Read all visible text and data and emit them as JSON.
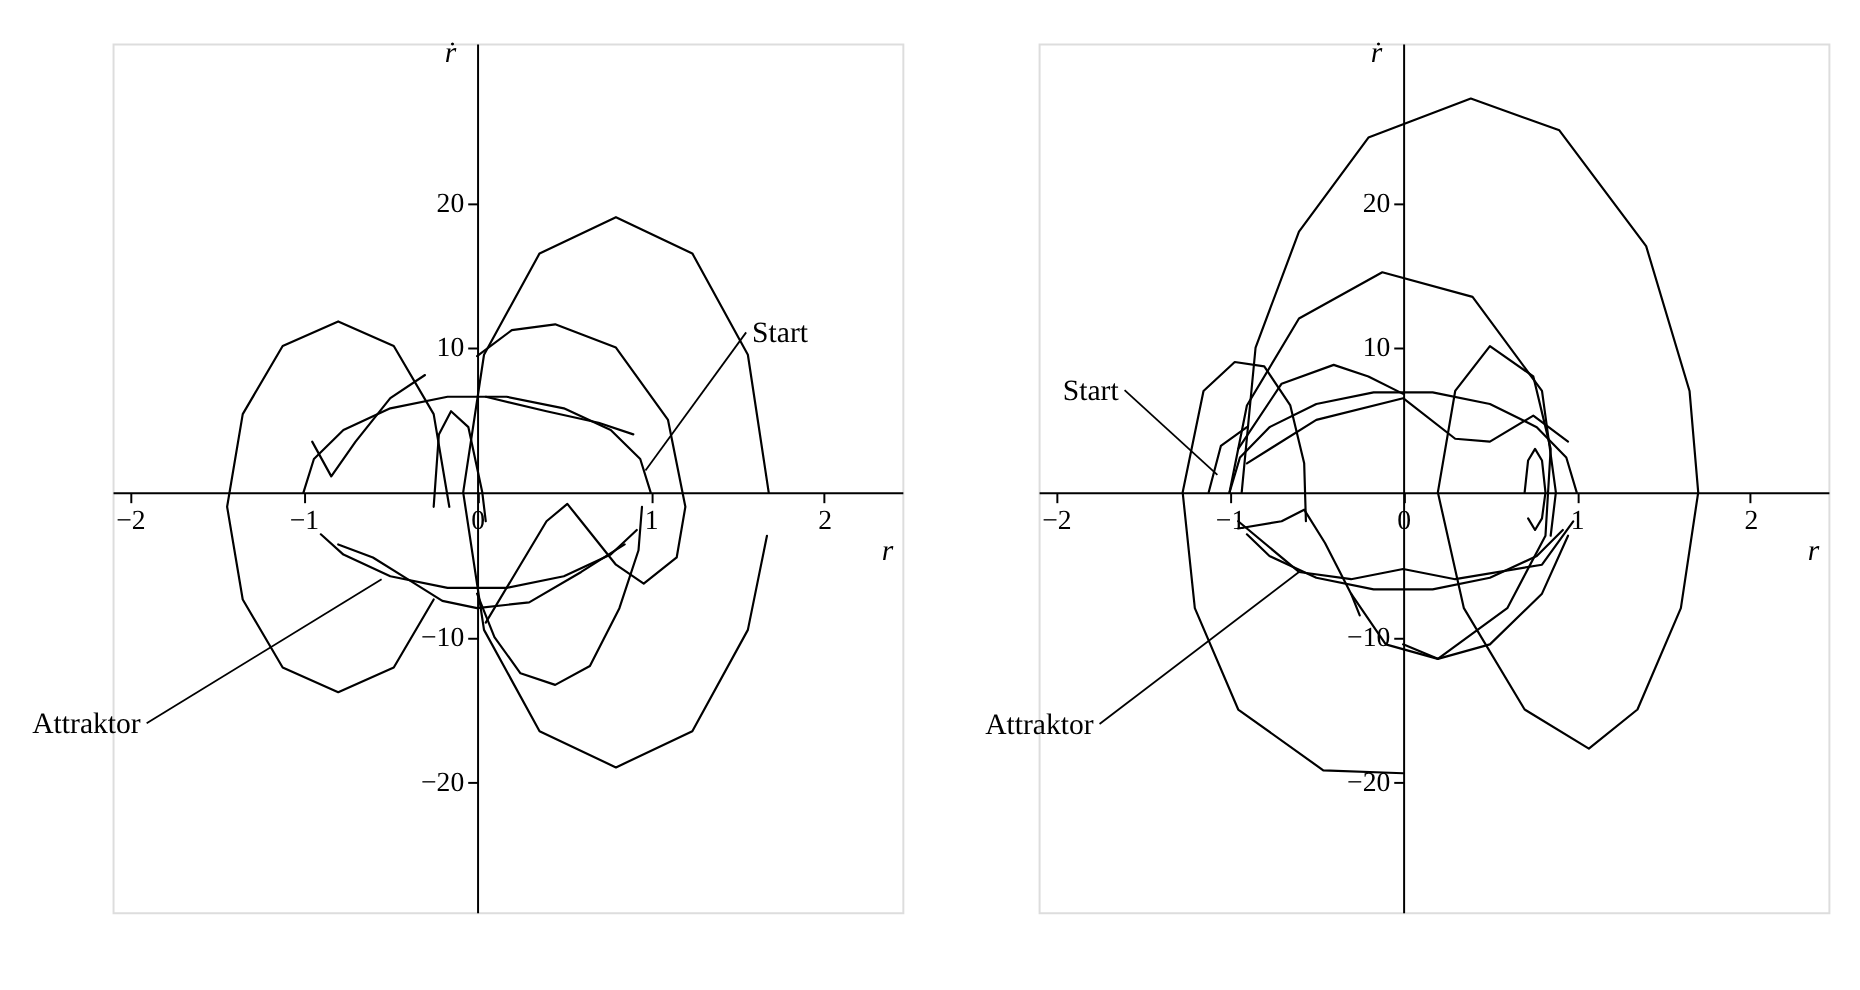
{
  "chart_data": [
    {
      "type": "line",
      "xlabel": "r",
      "ylabel": "ṙ",
      "xlim": [
        -2.1,
        2.45
      ],
      "ylim": [
        -29,
        31
      ],
      "xticks": [
        -2,
        -1,
        0,
        1,
        2
      ],
      "yticks": [
        -20,
        -10,
        10,
        20
      ],
      "grid": false,
      "annotations": [
        {
          "text": "Start",
          "x": 0.97,
          "y": 1.5
        },
        {
          "text": "Attraktor",
          "x": -0.55,
          "y": -6
        }
      ],
      "series": [
        {
          "color": "#000000",
          "x": [
            -1,
            -0.94,
            -0.77,
            -0.5,
            -0.17,
            0.17,
            0.5,
            0.77,
            0.94,
            1
          ],
          "values": [
            0,
            2.3,
            4.3,
            5.8,
            6.6,
            6.6,
            5.8,
            4.3,
            2.3,
            0
          ]
        },
        {
          "color": "#000000",
          "x": [
            -0.9,
            -0.77,
            -0.5,
            -0.17,
            0.17,
            0.5,
            0.77,
            0.92
          ],
          "values": [
            -2.9,
            -4.3,
            -5.8,
            -6.6,
            -6.6,
            -5.8,
            -4.3,
            -2.6
          ]
        },
        {
          "color": "#000000",
          "x": [
            1.68,
            1.56,
            1.24,
            0.8,
            0.36,
            0.04,
            -0.08,
            0.04,
            0.36,
            0.8,
            1.24,
            1.56,
            1.67
          ],
          "values": [
            0,
            9.5,
            16.5,
            19,
            16.5,
            9.5,
            0,
            -9.5,
            -16.5,
            -19,
            -16.5,
            -9.5,
            -3
          ]
        },
        {
          "color": "#000000",
          "x": [
            -0.16,
            -0.25,
            -0.48,
            -0.8,
            -1.12,
            -1.35,
            -1.44,
            -1.35,
            -1.12,
            -0.8,
            -0.48,
            -0.25
          ],
          "values": [
            -1,
            5.4,
            10.1,
            11.8,
            10.1,
            5.4,
            -1,
            -7.4,
            -12.1,
            -13.8,
            -12.1,
            -7.4
          ]
        },
        {
          "color": "#000000",
          "x": [
            0,
            0.2,
            0.45,
            0.8,
            1.1,
            1.2,
            1.15,
            0.96,
            0.8,
            0.6,
            0.52,
            0.4,
            0.2,
            0.05
          ],
          "values": [
            9.4,
            11.2,
            11.6,
            10,
            5,
            -1,
            -4.5,
            -6.3,
            -5,
            -2,
            -0.8,
            -2,
            -6,
            -9
          ]
        },
        {
          "color": "#000000",
          "x": [
            0,
            0.1,
            0.25,
            0.45,
            0.65,
            0.82,
            0.93,
            0.95
          ],
          "values": [
            -7,
            -10,
            -12.5,
            -13.3,
            -12,
            -8,
            -4,
            -1
          ]
        },
        {
          "color": "#000000",
          "x": [
            -0.95,
            -0.84,
            -0.7,
            -0.5,
            -0.3
          ],
          "values": [
            3.5,
            1.1,
            3.5,
            6.5,
            8.1
          ]
        },
        {
          "color": "#000000",
          "x": [
            -0.25,
            -0.22,
            -0.15,
            -0.05,
            0.03,
            0.05
          ],
          "values": [
            -1,
            4,
            5.6,
            4.5,
            0,
            -2
          ]
        },
        {
          "color": "#000000",
          "x": [
            0.05,
            0.4,
            0.7,
            0.9
          ],
          "values": [
            6.6,
            5.6,
            4.8,
            4
          ]
        },
        {
          "color": "#000000",
          "x": [
            -0.8,
            -0.6,
            -0.4,
            -0.2,
            0,
            0.3,
            0.6,
            0.85
          ],
          "values": [
            -3.6,
            -4.5,
            -6,
            -7.5,
            -8,
            -7.6,
            -5.5,
            -3.6
          ]
        }
      ]
    },
    {
      "type": "line",
      "xlabel": "r",
      "ylabel": "ṙ",
      "xlim": [
        -2.1,
        2.45
      ],
      "ylim": [
        -29,
        31
      ],
      "xticks": [
        -2,
        -1,
        0,
        1,
        2
      ],
      "yticks": [
        -20,
        -10,
        10,
        20
      ],
      "grid": false,
      "annotations": [
        {
          "text": "Start",
          "x": -1.07,
          "y": 1.2
        },
        {
          "text": "Attraktor",
          "x": -0.6,
          "y": -5.5
        }
      ],
      "series": [
        {
          "color": "#000000",
          "x": [
            -1,
            -0.94,
            -0.77,
            -0.5,
            -0.17,
            0.17,
            0.5,
            0.77,
            0.94,
            1
          ],
          "values": [
            0,
            2.4,
            4.5,
            6.1,
            6.9,
            6.9,
            6.1,
            4.5,
            2.4,
            0
          ]
        },
        {
          "color": "#000000",
          "x": [
            -0.9,
            -0.77,
            -0.5,
            -0.17,
            0.17,
            0.5,
            0.77,
            0.92
          ],
          "values": [
            -2.9,
            -4.4,
            -5.9,
            -6.7,
            -6.7,
            -5.9,
            -4.4,
            -2.6
          ]
        },
        {
          "color": "#000000",
          "x": [
            -0.93,
            -0.85,
            -0.6,
            -0.2,
            0.39,
            0.9,
            1.4,
            1.65,
            1.7,
            1.6,
            1.35,
            1.07,
            0.7,
            0.35,
            0.2,
            0.3,
            0.5,
            0.75,
            0.85,
            0.82,
            0.6,
            0.2,
            0
          ],
          "values": [
            0,
            10,
            18,
            24.5,
            27.2,
            25,
            17,
            7,
            0,
            -8,
            -15,
            -17.7,
            -15,
            -8,
            0,
            7,
            10.1,
            8,
            3,
            -3,
            -8,
            -11.5,
            -10.5
          ]
        },
        {
          "color": "#000000",
          "x": [
            -1,
            -0.9,
            -0.6,
            -0.12,
            0.4,
            0.8,
            0.88,
            0.85
          ],
          "values": [
            0,
            6,
            12,
            15.2,
            13.5,
            7,
            0,
            -3
          ]
        },
        {
          "color": "#000000",
          "x": [
            -0.56,
            -0.57,
            -0.65,
            -0.8,
            -0.97,
            -1.15,
            -1.27,
            -1.2,
            -0.95,
            -0.46,
            0
          ],
          "values": [
            -2,
            2,
            6,
            8.7,
            9,
            7,
            0,
            -8,
            -15,
            -19.2,
            -19.4
          ]
        },
        {
          "color": "#000000",
          "x": [
            -0.95,
            -0.7,
            -0.4,
            -0.2,
            0
          ],
          "values": [
            3,
            7.5,
            8.8,
            8,
            6.8
          ]
        },
        {
          "color": "#000000",
          "x": [
            -0.9,
            -0.5,
            0,
            0.3,
            0.5,
            0.75,
            0.95
          ],
          "values": [
            2,
            5,
            6.5,
            3.7,
            3.5,
            5.3,
            3.5
          ]
        },
        {
          "color": "#000000",
          "x": [
            -0.95,
            -0.6,
            -0.3,
            0,
            0.3,
            0.8,
            0.98
          ],
          "values": [
            -2,
            -5.5,
            -6,
            -5.3,
            -6,
            -5,
            -2
          ]
        },
        {
          "color": "#000000",
          "x": [
            -0.3,
            -0.1,
            0.2,
            0.5,
            0.8,
            0.95
          ],
          "values": [
            -7,
            -10.5,
            -11.5,
            -10.5,
            -7,
            -3
          ]
        },
        {
          "color": "#000000",
          "x": [
            -0.95,
            -0.7,
            -0.57,
            -0.45,
            -0.3,
            -0.25
          ],
          "values": [
            -2.5,
            -2,
            -1.2,
            -3.5,
            -7,
            -8.5
          ]
        },
        {
          "color": "#000000",
          "x": [
            0.7,
            0.72,
            0.76,
            0.8,
            0.82,
            0.8,
            0.76,
            0.72
          ],
          "values": [
            0,
            2.2,
            3,
            2.2,
            0,
            -1.8,
            -2.6,
            -1.8
          ]
        },
        {
          "color": "#000000",
          "x": [
            -1.12,
            -1.05,
            -0.9
          ],
          "values": [
            0,
            3.2,
            4.5
          ]
        }
      ]
    }
  ]
}
